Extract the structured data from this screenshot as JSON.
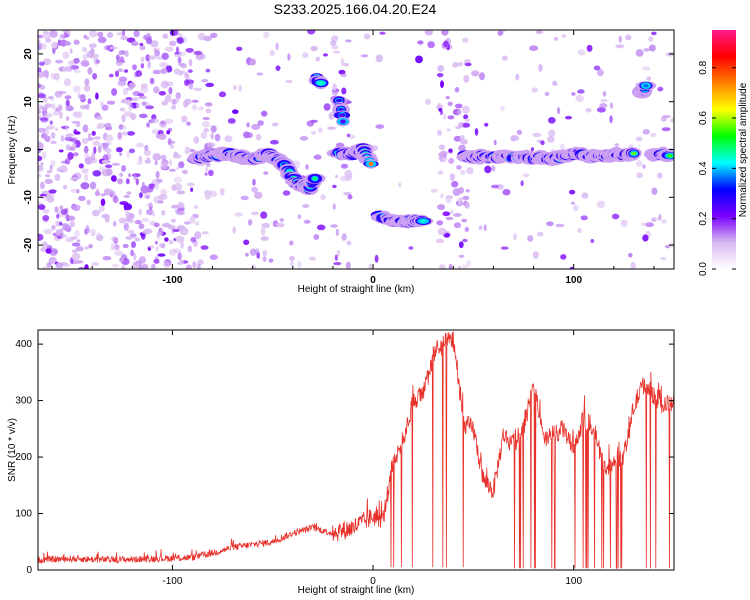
{
  "title": "S233.2025.166.04.20.E24",
  "chart_data": [
    {
      "type": "heatmap",
      "xlabel": "Height of straight line (km)",
      "ylabel": "Frequency (Hz)",
      "xlim": [
        -167,
        150
      ],
      "ylim": [
        -25,
        25
      ],
      "xticks": [
        -100,
        0,
        100
      ],
      "yticks": [
        -20,
        -10,
        0,
        10,
        20
      ],
      "colorbar": {
        "label": "Normalized spectral amplitude",
        "range": [
          0.0,
          0.95
        ],
        "ticks": [
          0.0,
          0.2,
          0.4,
          0.6,
          0.8
        ],
        "colors": [
          "#ffffff",
          "#d8b8f0",
          "#7a00ff",
          "#0000ff",
          "#00ffff",
          "#00ff00",
          "#ffff00",
          "#ff8000",
          "#ff0000",
          "#ff1a8c"
        ]
      },
      "ridges": [
        {
          "x": [
            -88,
            -80,
            -70,
            -60,
            -52,
            -45,
            -38,
            -32,
            -29
          ],
          "y": [
            -2,
            -1,
            -1,
            -2,
            -1,
            -3,
            -7,
            -8,
            -6
          ],
          "amplitude": 0.5
        },
        {
          "x": [
            -28,
            -26
          ],
          "y": [
            15,
            14
          ],
          "amplitude": 0.5
        },
        {
          "x": [
            -17,
            -15
          ],
          "y": [
            10,
            6
          ],
          "amplitude": 0.3
        },
        {
          "x": [
            -18,
            -10,
            -5,
            -1
          ],
          "y": [
            -1,
            -1,
            0,
            -3
          ],
          "amplitude": 0.8
        },
        {
          "x": [
            3,
            10,
            18,
            25
          ],
          "y": [
            -14,
            -15,
            -15,
            -15
          ],
          "amplitude": 0.5
        },
        {
          "x": [
            46,
            60,
            75,
            90,
            100,
            112,
            122,
            130
          ],
          "y": [
            -1.5,
            -1.5,
            -1.5,
            -2,
            -1,
            -1.5,
            -1,
            -1
          ],
          "amplitude": 0.7
        },
        {
          "x": [
            134,
            136
          ],
          "y": [
            12,
            13
          ],
          "amplitude": 0.4
        },
        {
          "x": [
            139,
            148
          ],
          "y": [
            -1,
            -1
          ],
          "amplitude": 0.6
        }
      ]
    },
    {
      "type": "line",
      "xlabel": "Height of straight line (km)",
      "ylabel": "SNR (10 * v/v)",
      "xlim": [
        -167,
        150
      ],
      "ylim": [
        0,
        425
      ],
      "xticks": [
        -100,
        0,
        100
      ],
      "yticks": [
        0,
        100,
        200,
        300,
        400
      ],
      "color": "#e8302a",
      "series": [
        {
          "x": [
            -167,
            -150,
            -130,
            -110,
            -90,
            -80,
            -70,
            -60,
            -50,
            -40,
            -30,
            -20,
            -10,
            -5,
            0,
            5,
            10,
            15,
            20,
            25,
            30,
            35,
            40,
            45,
            50,
            55,
            60,
            65,
            70,
            75,
            80,
            85,
            90,
            95,
            100,
            105,
            110,
            115,
            120,
            125,
            130,
            135,
            140,
            145,
            150
          ],
          "values": [
            18,
            20,
            18,
            20,
            22,
            30,
            40,
            45,
            50,
            65,
            75,
            65,
            75,
            85,
            95,
            90,
            190,
            230,
            300,
            310,
            380,
            400,
            410,
            260,
            250,
            160,
            140,
            240,
            220,
            250,
            330,
            230,
            240,
            250,
            210,
            270,
            250,
            180,
            190,
            200,
            290,
            330,
            310,
            290,
            300
          ]
        }
      ]
    }
  ]
}
